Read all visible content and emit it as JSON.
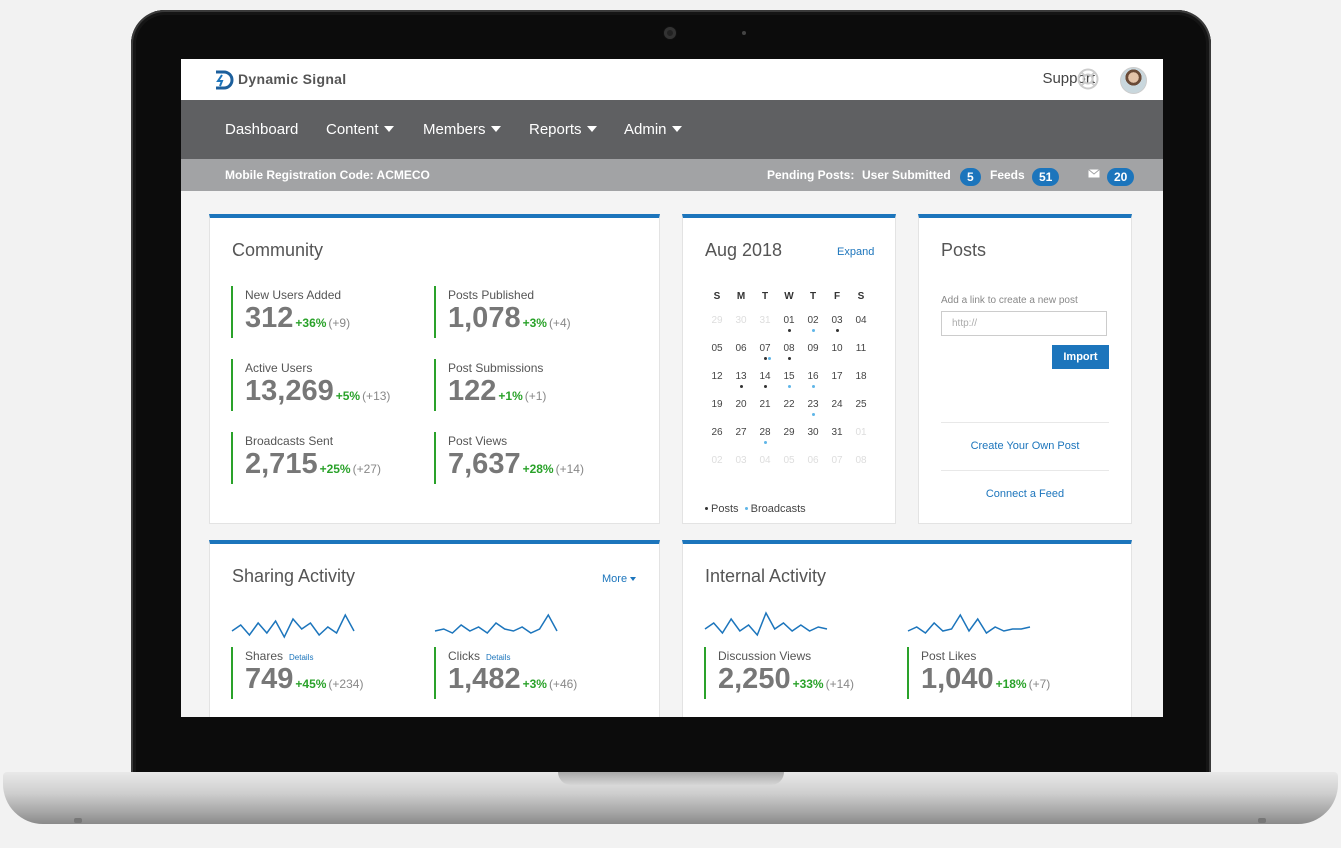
{
  "header": {
    "brand": "Dynamic Signal",
    "support_label": "Support"
  },
  "nav": {
    "items": [
      {
        "label": "Dashboard",
        "dropdown": false
      },
      {
        "label": "Content",
        "dropdown": true
      },
      {
        "label": "Members",
        "dropdown": true
      },
      {
        "label": "Reports",
        "dropdown": true
      },
      {
        "label": "Admin",
        "dropdown": true
      }
    ]
  },
  "subbar": {
    "registration_label": "Mobile Registration Code: ACMECO",
    "pending_label": "Pending Posts:",
    "user_submitted_label": "User Submitted",
    "user_submitted_count": "5",
    "feeds_label": "Feeds",
    "feeds_count": "51",
    "messages_count": "20"
  },
  "community": {
    "title": "Community",
    "stats": [
      {
        "label": "New Users Added",
        "value": "312",
        "pct": "+36%",
        "delta": "(+9)"
      },
      {
        "label": "Posts Published",
        "value": "1,078",
        "pct": "+3%",
        "delta": "(+4)"
      },
      {
        "label": "Active Users",
        "value": "13,269",
        "pct": "+5%",
        "delta": "(+13)"
      },
      {
        "label": "Post Submissions",
        "value": "122",
        "pct": "+1%",
        "delta": "(+1)"
      },
      {
        "label": "Broadcasts Sent",
        "value": "2,715",
        "pct": "+25%",
        "delta": "(+27)"
      },
      {
        "label": "Post Views",
        "value": "7,637",
        "pct": "+28%",
        "delta": "(+14)"
      }
    ]
  },
  "calendar": {
    "title": "Aug 2018",
    "expand_label": "Expand",
    "weekdays": [
      "S",
      "M",
      "T",
      "W",
      "T",
      "F",
      "S"
    ],
    "weeks": [
      [
        "29",
        "30",
        "31",
        "01",
        "02",
        "03",
        "04"
      ],
      [
        "05",
        "06",
        "07",
        "08",
        "09",
        "10",
        "11"
      ],
      [
        "12",
        "13",
        "14",
        "15",
        "16",
        "17",
        "18"
      ],
      [
        "19",
        "20",
        "21",
        "22",
        "23",
        "24",
        "25"
      ],
      [
        "26",
        "27",
        "28",
        "29",
        "30",
        "31",
        "01"
      ],
      [
        "02",
        "03",
        "04",
        "05",
        "06",
        "07",
        "08"
      ]
    ],
    "legend_posts": "Posts",
    "legend_broadcasts": "Broadcasts",
    "colors": {
      "posts": "#333333",
      "broadcasts": "#5fb6e8"
    }
  },
  "posts": {
    "title": "Posts",
    "hint": "Add a link to create a new post",
    "input_placeholder": "http://",
    "import_label": "Import",
    "create_label": "Create Your Own Post",
    "feed_label": "Connect a Feed"
  },
  "sharing": {
    "title": "Sharing Activity",
    "more_label": "More",
    "stats": [
      {
        "label": "Shares",
        "details": "Details",
        "value": "749",
        "pct": "+45%",
        "delta": "(+234)"
      },
      {
        "label": "Clicks",
        "details": "Details",
        "value": "1,482",
        "pct": "+3%",
        "delta": "(+46)"
      }
    ]
  },
  "internal": {
    "title": "Internal Activity",
    "stats": [
      {
        "label": "Discussion Views",
        "value": "2,250",
        "pct": "+33%",
        "delta": "(+14)"
      },
      {
        "label": "Post Likes",
        "value": "1,040",
        "pct": "+18%",
        "delta": "(+7)"
      }
    ]
  },
  "colors": {
    "accent": "#1c75bc",
    "positive": "#2aa22a",
    "nav_bg": "#5f6062",
    "subbar_bg": "#a2a3a5"
  }
}
